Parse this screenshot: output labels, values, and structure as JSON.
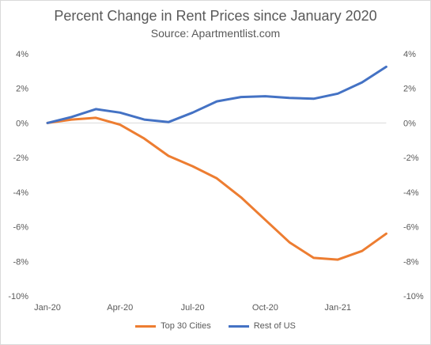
{
  "chart_data": {
    "type": "line",
    "title": "Percent Change in Rent Prices since January 2020",
    "subtitle": "Source: Apartmentlist.com",
    "x": [
      "Jan-20",
      "Feb-20",
      "Mar-20",
      "Apr-20",
      "May-20",
      "Jun-20",
      "Jul-20",
      "Aug-20",
      "Sep-20",
      "Oct-20",
      "Nov-20",
      "Dec-20",
      "Jan-21",
      "Feb-21",
      "Mar-21"
    ],
    "x_tick_labels": [
      "Jan-20",
      "Apr-20",
      "Jul-20",
      "Oct-20",
      "Jan-21"
    ],
    "series": [
      {
        "name": "Top 30 Cities",
        "color": "#ed7d31",
        "values": [
          0.0,
          0.2,
          0.3,
          -0.1,
          -0.9,
          -1.9,
          -2.5,
          -3.2,
          -4.3,
          -5.6,
          -6.9,
          -7.8,
          -7.9,
          -7.4,
          -6.4
        ]
      },
      {
        "name": "Rest of US",
        "color": "#4472c4",
        "values": [
          0.0,
          0.35,
          0.8,
          0.6,
          0.2,
          0.05,
          0.6,
          1.25,
          1.5,
          1.55,
          1.45,
          1.4,
          1.7,
          2.35,
          3.25
        ]
      }
    ],
    "ylim": [
      -10,
      4
    ],
    "y_ticks": [
      4,
      2,
      0,
      -2,
      -4,
      -6,
      -8,
      -10
    ],
    "y_tick_labels": [
      "4%",
      "2%",
      "0%",
      "-2%",
      "-4%",
      "-6%",
      "-8%",
      "-10%"
    ],
    "secondary_y_axis": true,
    "grid": false,
    "legend_position": "bottom"
  }
}
